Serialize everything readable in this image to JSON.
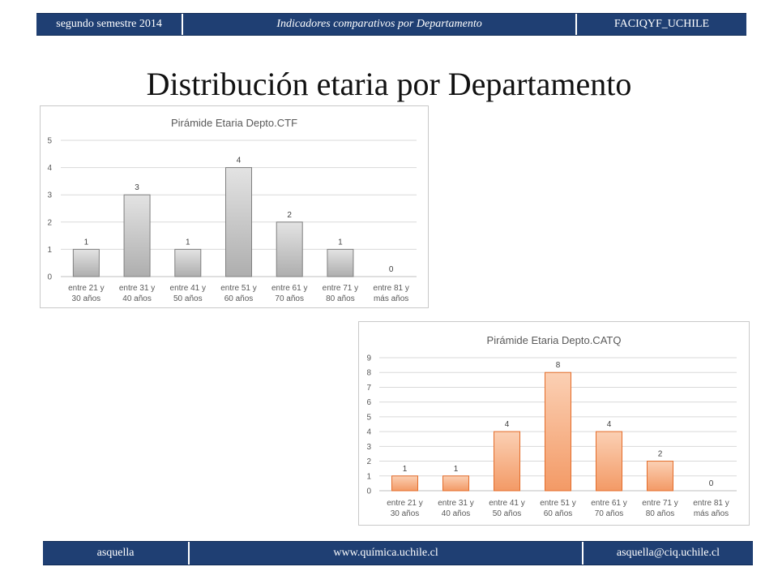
{
  "header": {
    "semester": "segundo semestre 2014",
    "topic": "Indicadores comparativos por Departamento",
    "org": "FACIQYF_UCHILE"
  },
  "slide": {
    "title": "Distribución etaria por Departamento"
  },
  "footer": {
    "author": "asquella",
    "website": "www.química.uchile.cl",
    "email": "asquella@ciq.uchile.cl"
  },
  "colors": {
    "header_bg": "#1f3f73",
    "ctf_bar_light": "#e3e3e3",
    "ctf_bar_dark": "#aeaeae",
    "ctf_bar_stroke": "#7f7f7f",
    "catq_bar_light": "#fbd0b4",
    "catq_bar_dark": "#f39a66",
    "catq_bar_stroke": "#e46c2a"
  },
  "chart_data": [
    {
      "type": "bar",
      "title": "Pirámide Etaria Depto.CTF",
      "categories": [
        [
          "entre 21 y",
          "30 años"
        ],
        [
          "entre 31 y",
          "40 años"
        ],
        [
          "entre 41 y",
          "50 años"
        ],
        [
          "entre 51 y",
          "60 años"
        ],
        [
          "entre 61 y",
          "70 años"
        ],
        [
          "entre 71 y",
          "80 años"
        ],
        [
          "entre 81 y",
          "más años"
        ]
      ],
      "values": [
        1,
        3,
        1,
        4,
        2,
        1,
        0
      ],
      "ylim": [
        0,
        5
      ],
      "yticks": [
        0,
        1,
        2,
        3,
        4,
        5
      ],
      "grid": true,
      "data_labels": true,
      "xlabel": "",
      "ylabel": ""
    },
    {
      "type": "bar",
      "title": "Pirámide Etaria Depto.CATQ",
      "categories": [
        [
          "entre 21 y",
          "30 años"
        ],
        [
          "entre 31 y",
          "40 años"
        ],
        [
          "entre 41 y",
          "50 años"
        ],
        [
          "entre 51 y",
          "60 años"
        ],
        [
          "entre 61 y",
          "70 años"
        ],
        [
          "entre 71 y",
          "80 años"
        ],
        [
          "entre 81 y",
          "más años"
        ]
      ],
      "values": [
        1,
        1,
        4,
        8,
        4,
        2,
        0
      ],
      "ylim": [
        0,
        9
      ],
      "yticks": [
        0,
        1,
        2,
        3,
        4,
        5,
        6,
        7,
        8,
        9
      ],
      "grid": true,
      "data_labels": true,
      "xlabel": "",
      "ylabel": ""
    }
  ]
}
